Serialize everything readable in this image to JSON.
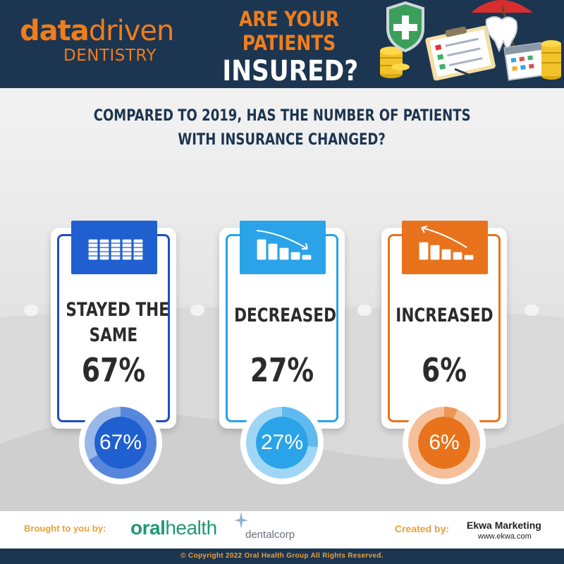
{
  "header": {
    "logo_data": "data",
    "logo_driven": "driven",
    "logo_sub": "DENTISTRY",
    "headline_1": "ARE YOUR",
    "headline_2": "PATIENTS",
    "headline_3": "INSURED?"
  },
  "question": {
    "line1": "COMPARED TO 2019, HAS THE NUMBER OF PATIENTS",
    "line2": "WITH INSURANCE CHANGED?"
  },
  "chart_data": {
    "type": "pie",
    "title": "COMPARED TO 2019, HAS THE NUMBER OF PATIENTS WITH INSURANCE CHANGED?",
    "categories": [
      "STAYED THE SAME",
      "DECREASED",
      "INCREASED"
    ],
    "values": [
      67,
      27,
      6
    ],
    "value_labels": [
      "67%",
      "27%",
      "6%"
    ],
    "label_lines": [
      [
        "STAYED THE",
        "SAME"
      ],
      [
        "DECREASED"
      ],
      [
        "INCREASED"
      ]
    ],
    "colors": [
      "#1f5fd0",
      "#2aa3e8",
      "#e8731c"
    ]
  },
  "colors": {
    "navy": "#1c3550",
    "orange": "#ef7d1c",
    "blue_dark": "#1f5fd0",
    "blue_light": "#2aa3e8",
    "orange_card": "#e8731c"
  },
  "icons": [
    "coin-stacks-icon",
    "coins-decreasing-icon",
    "coins-increasing-icon",
    "shield-icon",
    "clipboard-icon",
    "tooth-icon",
    "umbrella-icon",
    "calendar-icon"
  ],
  "footer": {
    "brought_by": "Brought to you by:",
    "oral": "oral",
    "health": "health",
    "dentalcorp": "dentalcorp",
    "created_by": "Created by:",
    "ekwa": "Ekwa Marketing",
    "ekwa_web": "www.ekwa.com",
    "copyright": "© Copyright 2022 Oral Health Group All Rights Reserved."
  }
}
